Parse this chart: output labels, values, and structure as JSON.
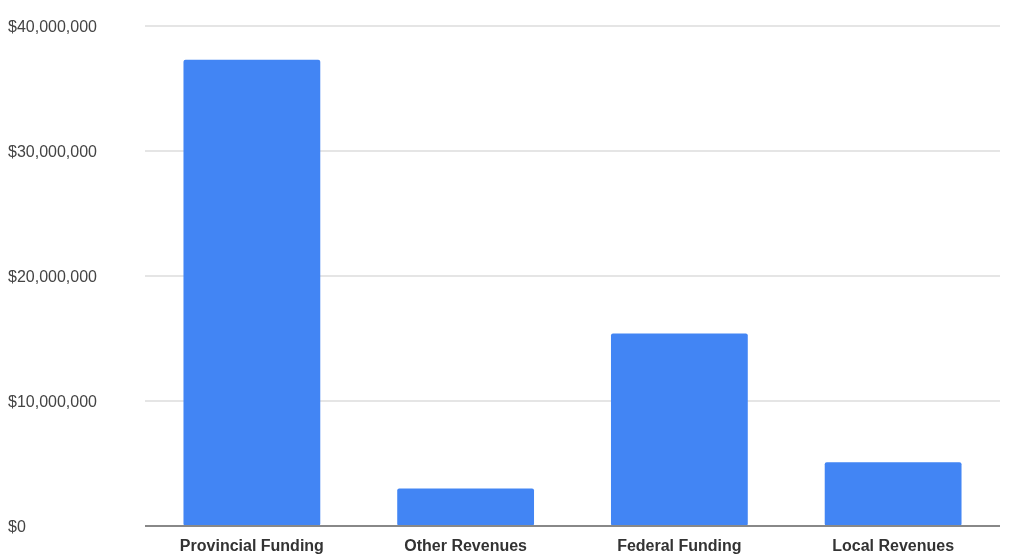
{
  "chart_data": {
    "type": "bar",
    "categories": [
      "Provincial Funding",
      "Other Revenues",
      "Federal Funding",
      "Local Revenues"
    ],
    "values": [
      37300000,
      3000000,
      15400000,
      5100000
    ],
    "color": "#4285f4",
    "ylim": [
      0,
      40000000
    ],
    "yticks": [
      {
        "value": 0,
        "label": "$0"
      },
      {
        "value": 10000000,
        "label": "$10,000,000"
      },
      {
        "value": 20000000,
        "label": "$20,000,000"
      },
      {
        "value": 30000000,
        "label": "$30,000,000"
      },
      {
        "value": 40000000,
        "label": "$40,000,000"
      }
    ],
    "grid": true
  }
}
